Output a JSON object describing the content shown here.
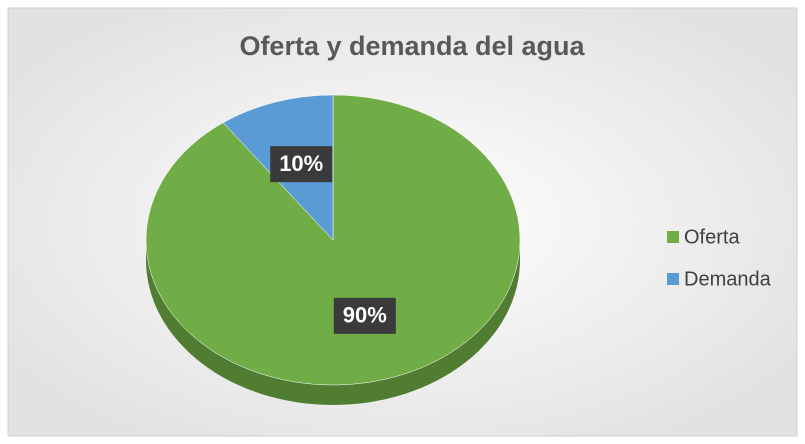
{
  "chart_data": {
    "type": "pie",
    "title": "Oferta y demanda del agua",
    "categories": [
      "Oferta",
      "Demanda"
    ],
    "values": [
      90,
      10
    ],
    "value_labels": [
      "90%",
      "10%"
    ],
    "colors": [
      "#70ad47",
      "#5b9bd5"
    ],
    "legend": "right"
  }
}
